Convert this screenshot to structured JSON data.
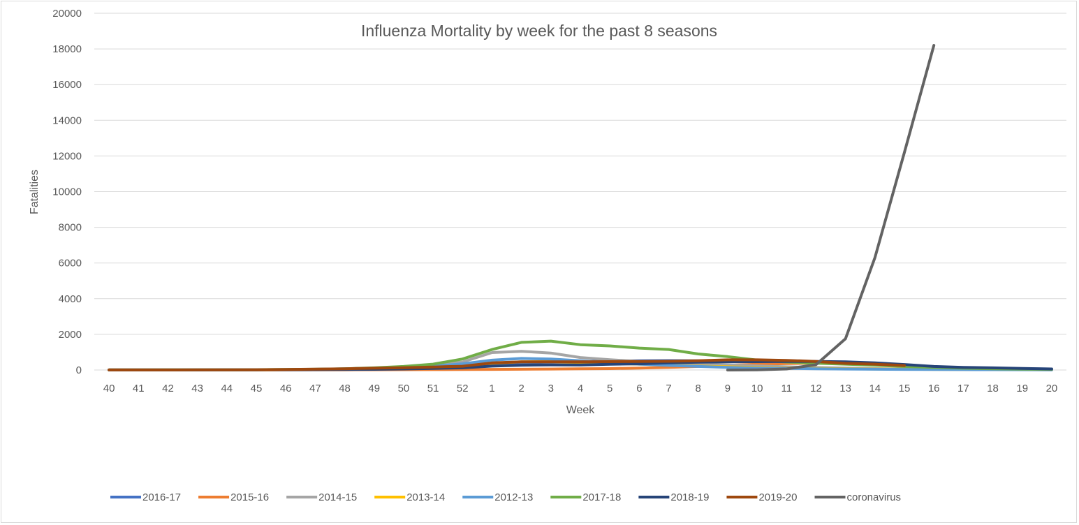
{
  "chart_data": {
    "type": "line",
    "title": "Influenza Mortality by week for the past 8 seasons",
    "xlabel": "Week",
    "ylabel": "Fatalities",
    "ylim": [
      0,
      20000
    ],
    "yticks": [
      0,
      2000,
      4000,
      6000,
      8000,
      10000,
      12000,
      14000,
      16000,
      18000,
      20000
    ],
    "grid": "horizontal",
    "legend_position": "bottom",
    "categories": [
      "40",
      "41",
      "42",
      "43",
      "44",
      "45",
      "46",
      "47",
      "48",
      "49",
      "50",
      "51",
      "52",
      "1",
      "2",
      "3",
      "4",
      "5",
      "6",
      "7",
      "8",
      "9",
      "10",
      "11",
      "12",
      "13",
      "14",
      "15",
      "16",
      "17",
      "18",
      "19",
      "20"
    ],
    "series": [
      {
        "name": "2016-17",
        "color": "#4472C4",
        "values": [
          5,
          5,
          5,
          5,
          8,
          10,
          15,
          20,
          30,
          50,
          70,
          100,
          150,
          250,
          400,
          450,
          480,
          500,
          520,
          530,
          520,
          500,
          480,
          450,
          400,
          350,
          280,
          220,
          160,
          120,
          90,
          70,
          60
        ]
      },
      {
        "name": "2015-16",
        "color": "#ED7D31",
        "values": [
          5,
          5,
          5,
          5,
          5,
          5,
          8,
          10,
          12,
          15,
          20,
          25,
          30,
          35,
          45,
          55,
          65,
          80,
          110,
          150,
          200,
          260,
          320,
          360,
          390,
          380,
          330,
          260,
          180,
          120,
          80,
          60,
          50
        ]
      },
      {
        "name": "2014-15",
        "color": "#A5A5A5",
        "values": [
          5,
          5,
          5,
          8,
          10,
          15,
          25,
          40,
          60,
          100,
          180,
          280,
          450,
          980,
          1050,
          950,
          700,
          580,
          480,
          400,
          330,
          280,
          230,
          180,
          140,
          110,
          80,
          60,
          45,
          35,
          30,
          25,
          20
        ]
      },
      {
        "name": "2013-14",
        "color": "#FFC000",
        "values": [
          5,
          5,
          5,
          5,
          8,
          12,
          20,
          30,
          50,
          80,
          120,
          180,
          260,
          380,
          460,
          470,
          420,
          380,
          330,
          270,
          220,
          180,
          140,
          110,
          90,
          70,
          55,
          45,
          35,
          28,
          22,
          18,
          15
        ]
      },
      {
        "name": "2012-13",
        "color": "#5B9BD5",
        "values": [
          5,
          5,
          5,
          8,
          10,
          15,
          25,
          40,
          70,
          110,
          150,
          220,
          350,
          550,
          650,
          620,
          520,
          420,
          330,
          260,
          200,
          150,
          110,
          90,
          70,
          55,
          45,
          35,
          28,
          22,
          18,
          15,
          12
        ]
      },
      {
        "name": "2017-18",
        "color": "#70AD47",
        "values": [
          5,
          5,
          8,
          10,
          15,
          20,
          30,
          45,
          70,
          120,
          200,
          330,
          620,
          1150,
          1550,
          1620,
          1420,
          1350,
          1230,
          1150,
          900,
          750,
          560,
          450,
          380,
          330,
          270,
          200,
          150,
          100,
          70,
          50,
          40
        ]
      },
      {
        "name": "2018-19",
        "color": "#264478",
        "values": [
          5,
          5,
          5,
          5,
          8,
          10,
          15,
          20,
          30,
          40,
          60,
          90,
          120,
          220,
          270,
          290,
          280,
          320,
          350,
          400,
          440,
          460,
          470,
          480,
          480,
          460,
          400,
          310,
          200,
          150,
          120,
          90,
          60
        ]
      },
      {
        "name": "2019-20",
        "color": "#9E480E",
        "values": [
          5,
          5,
          5,
          8,
          10,
          15,
          30,
          50,
          70,
          100,
          130,
          170,
          210,
          400,
          460,
          460,
          460,
          470,
          480,
          490,
          520,
          570,
          570,
          540,
          480,
          370,
          330,
          250,
          null,
          null,
          null,
          null,
          null
        ]
      },
      {
        "name": "coronavirus",
        "color": "#636363",
        "values": [
          null,
          null,
          null,
          null,
          null,
          null,
          null,
          null,
          null,
          null,
          null,
          null,
          null,
          null,
          null,
          null,
          null,
          null,
          null,
          null,
          null,
          0,
          10,
          60,
          300,
          1750,
          6300,
          12200,
          18200,
          null,
          null,
          null,
          null
        ]
      }
    ]
  }
}
